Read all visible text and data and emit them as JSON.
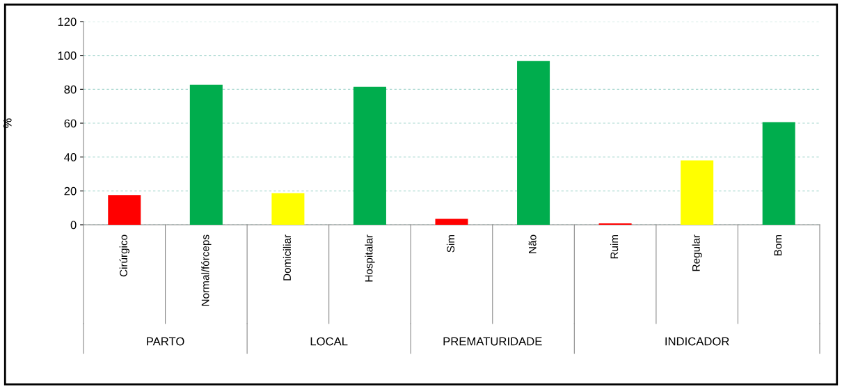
{
  "chart_data": {
    "type": "bar",
    "ylabel": "%",
    "categories": [
      "Cirúrgico",
      "Normal/fórceps",
      "Domiciliar",
      "Hospitalar",
      "Sim",
      "Não",
      "Ruim",
      "Regular",
      "Bom"
    ],
    "values": [
      17.6,
      82.7,
      18.7,
      81.5,
      3.5,
      96.7,
      0.8,
      38,
      60.6
    ],
    "colors": [
      "#ff0000",
      "#00ad4d",
      "#ffff00",
      "#00ad4d",
      "#ff0000",
      "#00ad4d",
      "#ff0000",
      "#ffff00",
      "#00ad4d"
    ],
    "ylim": [
      0,
      120
    ],
    "yticks": [
      0,
      20,
      40,
      60,
      80,
      100,
      120
    ],
    "grid": "y",
    "annotations": [
      "PARTO",
      "LOCAL",
      "PREMATURIDADE",
      "INDICADOR"
    ]
  }
}
